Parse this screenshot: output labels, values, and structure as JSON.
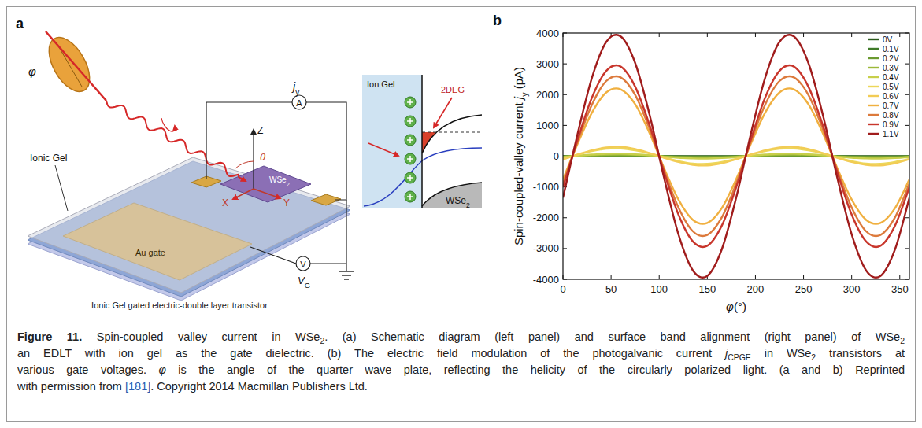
{
  "panel_a": {
    "letter": "a",
    "ionic_gel_label": "Ionic Gel",
    "phi_label": "φ",
    "current_label": [
      {
        "text": "j",
        "style": "italic"
      },
      {
        "text": "y",
        "style": "sub"
      }
    ],
    "ammeter": "A",
    "z_axis": "Z",
    "x_axis": "X",
    "y_axis": "Y",
    "theta": "θ",
    "flake": [
      {
        "text": "WSe"
      },
      {
        "text": "2",
        "style": "sub"
      }
    ],
    "gate": "Au gate",
    "voltmeter": "V",
    "gate_voltage": [
      {
        "text": "V",
        "style": "italic"
      },
      {
        "text": "G",
        "style": "sub"
      }
    ],
    "device_caption": "Ionic Gel gated electric-double layer transistor",
    "band": {
      "ion_gel": "Ion Gel",
      "twodeg": "2DEG",
      "semiconductor": [
        {
          "text": "WSe"
        },
        {
          "text": "2",
          "style": "sub"
        }
      ]
    }
  },
  "chart_data": {
    "type": "line",
    "panel_label": "b",
    "xlabel": [
      {
        "text": "φ",
        "style": "italic"
      },
      {
        "text": "(°)"
      }
    ],
    "ylabel": [
      {
        "text": "Spin-coupled-valley current "
      },
      {
        "text": "j",
        "style": "italic"
      },
      {
        "text": "y",
        "style": "sub"
      },
      {
        "text": " (pA)"
      }
    ],
    "x": [
      0,
      15,
      30,
      45,
      60,
      75,
      90,
      105,
      120,
      135,
      150,
      165,
      180,
      195,
      210,
      225,
      240,
      255,
      270,
      285,
      300,
      315,
      330,
      345,
      360
    ],
    "xlim": [
      0,
      360
    ],
    "xticks": [
      0,
      50,
      100,
      150,
      200,
      250,
      300,
      350
    ],
    "ylim": [
      -4000,
      4000
    ],
    "yticks": [
      -4000,
      -3000,
      -2000,
      -1000,
      0,
      1000,
      2000,
      3000,
      4000
    ],
    "grid": false,
    "legend": "upper right",
    "series": [
      {
        "name": "0V",
        "color": "#2b5a1c",
        "values": [
          0,
          0,
          0,
          0,
          0,
          0,
          0,
          0,
          0,
          0,
          0,
          0,
          0,
          0,
          0,
          0,
          0,
          0,
          0,
          0,
          0,
          0,
          0,
          0,
          0
        ]
      },
      {
        "name": "0.1V",
        "color": "#3f7a28",
        "values": [
          -5,
          0,
          5,
          10,
          10,
          10,
          5,
          0,
          -5,
          -10,
          -10,
          -10,
          -5,
          0,
          5,
          10,
          10,
          10,
          5,
          0,
          -5,
          -10,
          -10,
          -10,
          -5
        ]
      },
      {
        "name": "0.2V",
        "color": "#6b9a30",
        "values": [
          -5,
          5,
          15,
          20,
          20,
          15,
          5,
          -5,
          -15,
          -20,
          -20,
          -15,
          -5,
          5,
          15,
          20,
          20,
          15,
          5,
          -5,
          -15,
          -20,
          -20,
          -15,
          -5
        ]
      },
      {
        "name": "0.3V",
        "color": "#9cb93a",
        "values": [
          -20,
          10,
          30,
          45,
          50,
          40,
          20,
          -10,
          -30,
          -45,
          -50,
          -40,
          -20,
          10,
          30,
          45,
          50,
          40,
          20,
          -10,
          -30,
          -45,
          -50,
          -40,
          -20
        ]
      },
      {
        "name": "0.4V",
        "color": "#c8cf4a",
        "values": [
          -30,
          15,
          50,
          75,
          80,
          60,
          30,
          -15,
          -50,
          -75,
          -80,
          -60,
          -30,
          15,
          50,
          75,
          80,
          60,
          30,
          -15,
          -50,
          -75,
          -80,
          -60,
          -30
        ]
      },
      {
        "name": "0.5V",
        "color": "#ecd75a",
        "values": [
          -90,
          40,
          160,
          240,
          250,
          190,
          90,
          -40,
          -160,
          -240,
          -250,
          -190,
          -90,
          40,
          160,
          240,
          250,
          190,
          90,
          -40,
          -160,
          -240,
          -250,
          -190,
          -90
        ]
      },
      {
        "name": "0.6V",
        "color": "#f2cc55",
        "values": [
          -100,
          50,
          190,
          280,
          300,
          230,
          100,
          -50,
          -190,
          -280,
          -300,
          -230,
          -100,
          50,
          190,
          280,
          300,
          230,
          100,
          -50,
          -190,
          -280,
          -300,
          -230,
          -100
        ]
      },
      {
        "name": "0.7V",
        "color": "#f0b040",
        "values": [
          -750,
          380,
          1410,
          2070,
          2170,
          1690,
          750,
          -380,
          -1410,
          -2070,
          -2170,
          -1690,
          -750,
          380,
          1410,
          2070,
          2170,
          1690,
          750,
          -380,
          -1410,
          -2070,
          -2170,
          -1690,
          -750
        ]
      },
      {
        "name": "0.8V",
        "color": "#dc7a3c",
        "values": [
          -890,
          450,
          1670,
          2440,
          2560,
          1990,
          890,
          -450,
          -1670,
          -2440,
          -2560,
          -1990,
          -890,
          450,
          1670,
          2440,
          2560,
          1990,
          890,
          -450,
          -1670,
          -2440,
          -2560,
          -1990,
          -890
        ]
      },
      {
        "name": "0.9V",
        "color": "#c8362c",
        "values": [
          -1010,
          510,
          1900,
          2770,
          2910,
          2260,
          1010,
          -510,
          -1900,
          -2770,
          -2910,
          -2260,
          -1010,
          510,
          1900,
          2770,
          2910,
          2260,
          1010,
          -510,
          -1900,
          -2770,
          -2910,
          -2260,
          -1010
        ]
      },
      {
        "name": "1.1V",
        "color": "#a01c1c",
        "values": [
          -1350,
          690,
          2540,
          3710,
          3890,
          3030,
          1350,
          -690,
          -2540,
          -3710,
          -3890,
          -3030,
          -1350,
          690,
          2540,
          3710,
          3890,
          3030,
          1350,
          -690,
          -2540,
          -3710,
          -3890,
          -3030,
          -1350
        ]
      }
    ]
  },
  "caption": {
    "lines": [
      [
        {
          "text": "Figure 11.",
          "style": "bold"
        },
        {
          "text": " Spin-coupled valley current in WSe"
        },
        {
          "text": "2",
          "style": "sub"
        },
        {
          "text": ". (a) Schematic diagram (left panel) and surface band alignment (right panel) of WSe"
        },
        {
          "text": "2",
          "style": "sub"
        }
      ],
      [
        {
          "text": "an EDLT with ion gel as the gate dielectric. (b) The electric field modulation of the photogalvanic current "
        },
        {
          "text": "j",
          "style": "italic"
        },
        {
          "text": "CPGE",
          "style": "sub"
        },
        {
          "text": " in WSe"
        },
        {
          "text": "2",
          "style": "sub"
        },
        {
          "text": " transistors at"
        }
      ],
      [
        {
          "text": "various gate voltages. "
        },
        {
          "text": "φ",
          "style": "italic"
        },
        {
          "text": " is the angle of the quarter wave plate, reflecting the helicity of the circularly polarized light. (a and b) Reprinted"
        }
      ],
      [
        {
          "text": "with permission from "
        },
        {
          "text": "[181]",
          "style": "link"
        },
        {
          "text": ". Copyright 2014 Macmillan Publishers Ltd."
        }
      ]
    ]
  }
}
